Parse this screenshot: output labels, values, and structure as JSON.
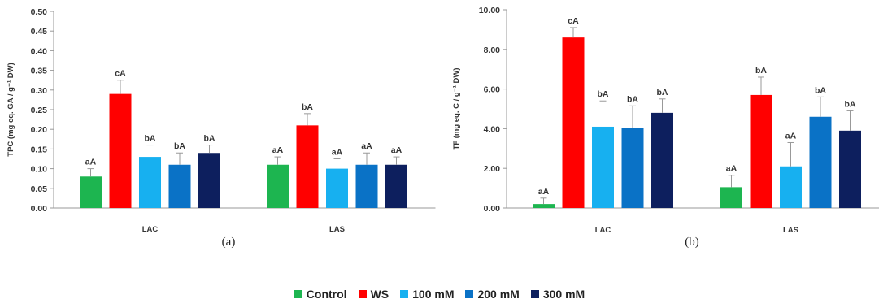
{
  "chart_data": [
    {
      "type": "bar",
      "panel": "(a)",
      "ylabel": "TPC (mg eq. GA / g⁻¹ DW)",
      "ylim": [
        0,
        0.5
      ],
      "yticks": [
        "0.00",
        "0.05",
        "0.10",
        "0.15",
        "0.20",
        "0.25",
        "0.30",
        "0.35",
        "0.40",
        "0.45",
        "0.50"
      ],
      "categories": [
        "LAC",
        "LAS"
      ],
      "series": [
        {
          "name": "Control",
          "values": [
            0.08,
            0.11
          ],
          "errors": [
            0.02,
            0.02
          ],
          "labels": [
            "aA",
            "aA"
          ]
        },
        {
          "name": "WS",
          "values": [
            0.29,
            0.21
          ],
          "errors": [
            0.035,
            0.03
          ],
          "labels": [
            "cA",
            "bA"
          ]
        },
        {
          "name": "100 mM",
          "values": [
            0.13,
            0.1
          ],
          "errors": [
            0.03,
            0.025
          ],
          "labels": [
            "bA",
            "aA"
          ]
        },
        {
          "name": "200 mM",
          "values": [
            0.11,
            0.11
          ],
          "errors": [
            0.03,
            0.03
          ],
          "labels": [
            "bA",
            "aA"
          ]
        },
        {
          "name": "300 mM",
          "values": [
            0.14,
            0.11
          ],
          "errors": [
            0.02,
            0.02
          ],
          "labels": [
            "bA",
            "aA"
          ]
        }
      ]
    },
    {
      "type": "bar",
      "panel": "(b)",
      "ylabel": "TF (mg eq. C / g⁻¹ DW)",
      "ylim": [
        0,
        10
      ],
      "yticks": [
        "0.00",
        "2.00",
        "4.00",
        "6.00",
        "8.00",
        "10.00"
      ],
      "categories": [
        "LAC",
        "LAS"
      ],
      "series": [
        {
          "name": "Control",
          "values": [
            0.2,
            1.05
          ],
          "errors": [
            0.3,
            0.6
          ],
          "labels": [
            "aA",
            "aA"
          ]
        },
        {
          "name": "WS",
          "values": [
            8.6,
            5.7
          ],
          "errors": [
            0.5,
            0.9
          ],
          "labels": [
            "cA",
            "bA"
          ]
        },
        {
          "name": "100 mM",
          "values": [
            4.1,
            2.1
          ],
          "errors": [
            1.3,
            1.2
          ],
          "labels": [
            "bA",
            "aA"
          ]
        },
        {
          "name": "200 mM",
          "values": [
            4.05,
            4.6
          ],
          "errors": [
            1.1,
            1.0
          ],
          "labels": [
            "bA",
            "bA"
          ]
        },
        {
          "name": "300 mM",
          "values": [
            4.8,
            3.9
          ],
          "errors": [
            0.7,
            1.0
          ],
          "labels": [
            "bA",
            "bA"
          ]
        }
      ]
    }
  ],
  "legend": {
    "items": [
      {
        "name": "Control",
        "color": "#1db550"
      },
      {
        "name": "WS",
        "color": "#ff0000"
      },
      {
        "name": "100 mM",
        "color": "#17b0f0"
      },
      {
        "name": "200 mM",
        "color": "#0a72c6"
      },
      {
        "name": "300 mM",
        "color": "#0d1f5e"
      }
    ]
  }
}
